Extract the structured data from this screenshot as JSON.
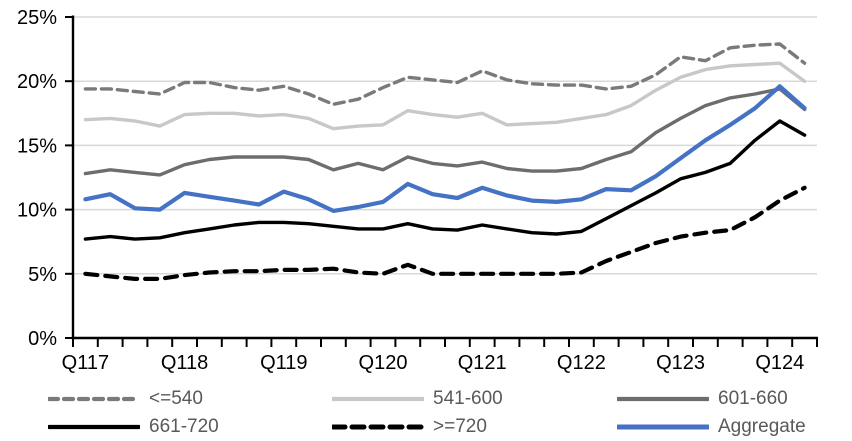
{
  "chart_data": {
    "type": "line",
    "title": "",
    "unit": "percent",
    "ylim": [
      0,
      25
    ],
    "grid": "horizontal",
    "y_ticks": [
      "0%",
      "5%",
      "10%",
      "15%",
      "20%",
      "25%"
    ],
    "y_tick_values": [
      0,
      5,
      10,
      15,
      20,
      25
    ],
    "x_categories": [
      "Q117",
      "Q217",
      "Q317",
      "Q417",
      "Q118",
      "Q218",
      "Q318",
      "Q418",
      "Q119",
      "Q219",
      "Q319",
      "Q419",
      "Q120",
      "Q220",
      "Q320",
      "Q420",
      "Q121",
      "Q221",
      "Q321",
      "Q421",
      "Q122",
      "Q222",
      "Q322",
      "Q422",
      "Q123",
      "Q223",
      "Q323",
      "Q423",
      "Q124",
      "Q224"
    ],
    "x_axis_labels_shown": [
      "Q117",
      "Q118",
      "Q119",
      "Q120",
      "Q121",
      "Q122",
      "Q123",
      "Q124"
    ],
    "x_label_indices": [
      0,
      4,
      8,
      12,
      16,
      20,
      24,
      28
    ],
    "series": [
      {
        "name": "<=540",
        "color": "#7a7a7a",
        "style": "dashed",
        "values": [
          19.4,
          19.4,
          19.2,
          19.0,
          19.9,
          19.9,
          19.5,
          19.3,
          19.6,
          19.0,
          18.2,
          18.6,
          19.5,
          20.3,
          20.1,
          19.9,
          20.8,
          20.1,
          19.8,
          19.7,
          19.7,
          19.4,
          19.6,
          20.5,
          21.9,
          21.6,
          22.6,
          22.8,
          22.9,
          21.4
        ]
      },
      {
        "name": "541-600",
        "color": "#c8c8c8",
        "style": "solid",
        "values": [
          17.0,
          17.1,
          16.9,
          16.5,
          17.4,
          17.5,
          17.5,
          17.3,
          17.4,
          17.1,
          16.3,
          16.5,
          16.6,
          17.7,
          17.4,
          17.2,
          17.5,
          16.6,
          16.7,
          16.8,
          17.1,
          17.4,
          18.1,
          19.3,
          20.3,
          20.9,
          21.2,
          21.3,
          21.4,
          20.0
        ]
      },
      {
        "name": "601-660",
        "color": "#6d6d6d",
        "style": "solid",
        "values": [
          12.8,
          13.1,
          12.9,
          12.7,
          13.5,
          13.9,
          14.1,
          14.1,
          14.1,
          13.9,
          13.1,
          13.6,
          13.1,
          14.1,
          13.6,
          13.4,
          13.7,
          13.2,
          13.0,
          13.0,
          13.2,
          13.9,
          14.5,
          16.0,
          17.1,
          18.1,
          18.7,
          19.0,
          19.4,
          17.8
        ]
      },
      {
        "name": "661-720",
        "color": "#000000",
        "style": "solid",
        "values": [
          7.7,
          7.9,
          7.7,
          7.8,
          8.2,
          8.5,
          8.8,
          9.0,
          9.0,
          8.9,
          8.7,
          8.5,
          8.5,
          8.9,
          8.5,
          8.4,
          8.8,
          8.5,
          8.2,
          8.1,
          8.3,
          9.3,
          10.3,
          11.3,
          12.4,
          12.9,
          13.6,
          15.4,
          16.9,
          15.8
        ]
      },
      {
        "name": ">=720",
        "color": "#000000",
        "style": "dashed",
        "values": [
          5.0,
          4.8,
          4.6,
          4.6,
          4.9,
          5.1,
          5.2,
          5.2,
          5.3,
          5.3,
          5.4,
          5.1,
          5.0,
          5.7,
          5.0,
          5.0,
          5.0,
          5.0,
          5.0,
          5.0,
          5.1,
          6.0,
          6.7,
          7.4,
          7.9,
          8.2,
          8.4,
          9.4,
          10.7,
          11.7
        ]
      },
      {
        "name": "Aggregate",
        "color": "#4472c4",
        "style": "solid",
        "values": [
          10.8,
          11.2,
          10.1,
          10.0,
          11.3,
          11.0,
          10.7,
          10.4,
          11.4,
          10.8,
          9.9,
          10.2,
          10.6,
          12.0,
          11.2,
          10.9,
          11.7,
          11.1,
          10.7,
          10.6,
          10.8,
          11.6,
          11.5,
          12.6,
          14.0,
          15.4,
          16.6,
          17.9,
          19.6,
          17.9
        ]
      }
    ],
    "legend": {
      "position": "bottom",
      "rows": [
        [
          "<=540",
          "541-600",
          "601-660"
        ],
        [
          "661-720",
          ">=720",
          "Aggregate"
        ]
      ]
    }
  },
  "colors": {
    "background": "#ffffff",
    "gridline": "#d9d9d9",
    "axis": "#000000",
    "axis_label": "#000000",
    "legend_text": "#595959",
    "accent_blue": "#4472c4"
  }
}
